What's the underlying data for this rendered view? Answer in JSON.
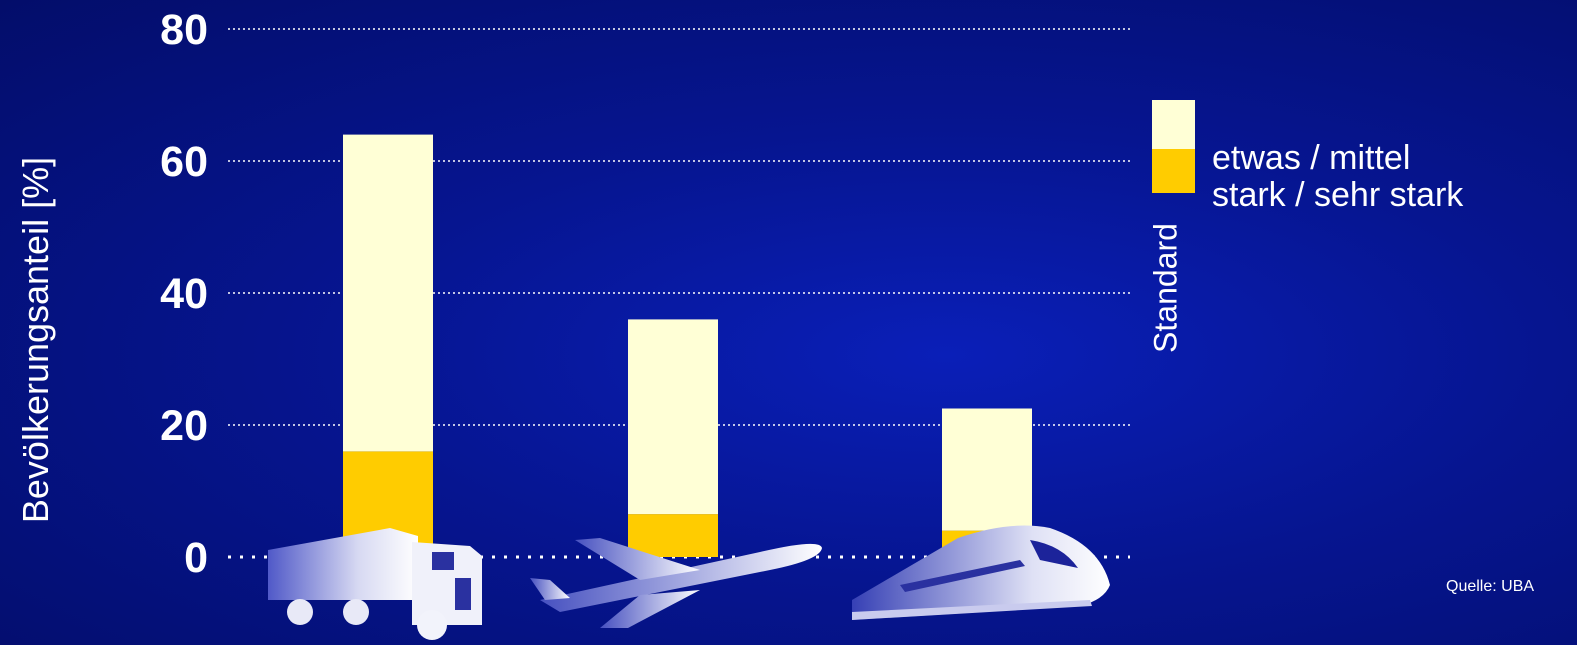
{
  "chart_data": {
    "type": "bar",
    "stacked": true,
    "categories": [
      "truck",
      "airplane",
      "train"
    ],
    "category_icons": [
      "truck-icon",
      "airplane-icon",
      "train-icon"
    ],
    "series": [
      {
        "name": "stark / sehr stark",
        "color": "#ffcc00",
        "values": [
          16,
          6.5,
          4
        ]
      },
      {
        "name": "etwas / mittel",
        "color": "#ffffd6",
        "values": [
          48,
          29.5,
          18.5
        ]
      }
    ],
    "ylabel": "Bevölkerungsanteil  [%]",
    "ylim": [
      0,
      80
    ],
    "yticks": [
      "0",
      "20",
      "40",
      "60",
      "80"
    ],
    "grid": true,
    "legend_position": "right",
    "legend_note": "Standard"
  },
  "source": "Quelle: UBA"
}
